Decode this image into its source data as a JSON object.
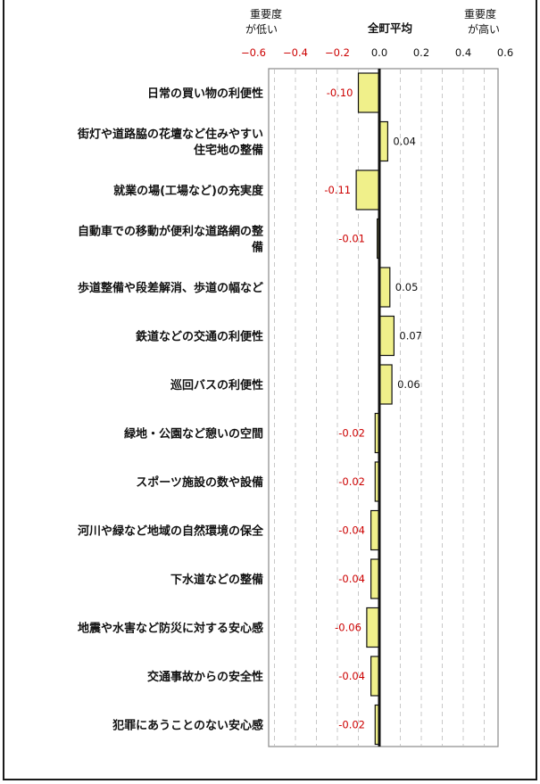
{
  "chart_data": {
    "type": "bar",
    "orientation": "horizontal",
    "header": {
      "low_label_line1": "重要度",
      "low_label_line2": "が低い",
      "center_label": "全町平均",
      "high_label_line1": "重要度",
      "high_label_line2": "が高い"
    },
    "xlim": [
      -0.6,
      0.6
    ],
    "ticks": [
      {
        "value": -0.6,
        "label": "−0.6"
      },
      {
        "value": -0.4,
        "label": "−0.4"
      },
      {
        "value": -0.2,
        "label": "−0.2"
      },
      {
        "value": 0.0,
        "label": "0.0"
      },
      {
        "value": 0.2,
        "label": "0.2"
      },
      {
        "value": 0.4,
        "label": "0.4"
      },
      {
        "value": 0.6,
        "label": "0.6"
      }
    ],
    "categories": [
      {
        "lines": [
          "日常の買い物の利便性"
        ]
      },
      {
        "lines": [
          "街灯や道路脇の花壇など住みやすい",
          "住宅地の整備"
        ]
      },
      {
        "lines": [
          "就業の場(工場など)の充実度"
        ]
      },
      {
        "lines": [
          "自動車での移動が便利な道路網の整",
          "備"
        ]
      },
      {
        "lines": [
          "歩道整備や段差解消、歩道の幅など"
        ]
      },
      {
        "lines": [
          "鉄道などの交通の利便性"
        ]
      },
      {
        "lines": [
          "巡回バスの利便性"
        ]
      },
      {
        "lines": [
          "緑地・公園など憩いの空間"
        ]
      },
      {
        "lines": [
          "スポーツ施設の数や設備"
        ]
      },
      {
        "lines": [
          "河川や緑など地域の自然環境の保全"
        ]
      },
      {
        "lines": [
          "下水道などの整備"
        ]
      },
      {
        "lines": [
          "地震や水害など防災に対する安心感"
        ]
      },
      {
        "lines": [
          "交通事故からの安全性"
        ]
      },
      {
        "lines": [
          "犯罪にあうことのない安心感"
        ]
      }
    ],
    "values": [
      -0.1,
      0.04,
      -0.11,
      -0.01,
      0.05,
      0.07,
      0.06,
      -0.02,
      -0.02,
      -0.04,
      -0.04,
      -0.06,
      -0.04,
      -0.02
    ],
    "value_labels": [
      "-0.10",
      "0.04",
      "-0.11",
      "-0.01",
      "0.05",
      "0.07",
      "0.06",
      "-0.02",
      "-0.02",
      "-0.04",
      "-0.04",
      "-0.06",
      "-0.04",
      "-0.02"
    ],
    "grid": "vertical dashed",
    "colors": {
      "bar_fill": "#f0f08a",
      "bar_stroke": "#111111",
      "negative_text": "#cc0000",
      "positive_text": "#111111",
      "grid": "#c8c8c8"
    }
  }
}
